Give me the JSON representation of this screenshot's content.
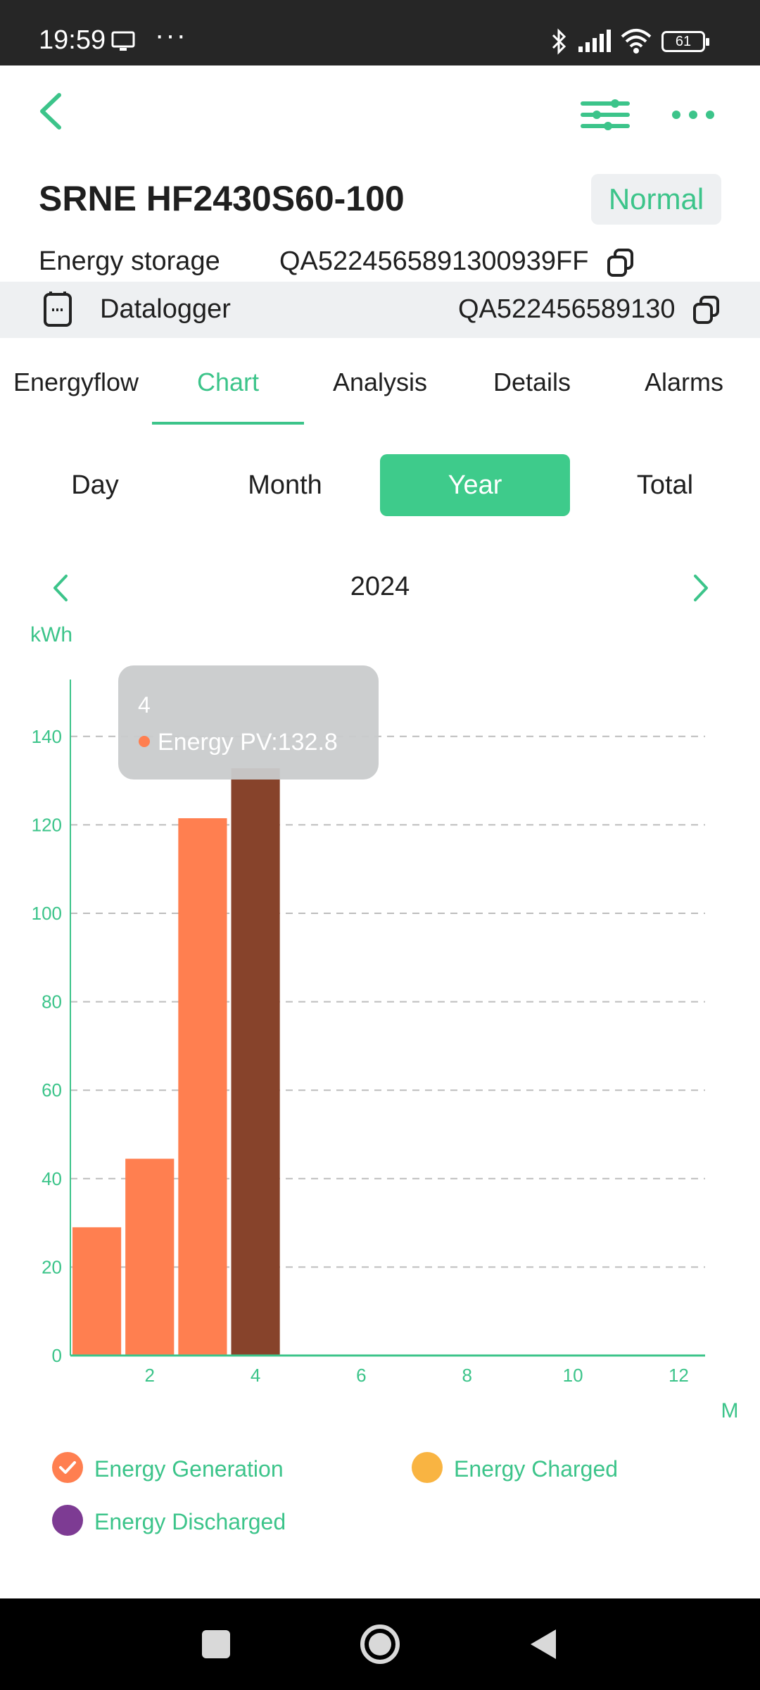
{
  "status_bar": {
    "time": "19:59",
    "overflow": "···",
    "battery": "61"
  },
  "device": {
    "title": "SRNE HF2430S60-100",
    "status": "Normal"
  },
  "energy_storage": {
    "label": "Energy storage",
    "serial": "QA5224565891300939FF"
  },
  "datalogger": {
    "label": "Datalogger",
    "serial": "QA522456589130"
  },
  "tabs": [
    {
      "label": "Energyflow"
    },
    {
      "label": "Chart"
    },
    {
      "label": "Analysis"
    },
    {
      "label": "Details"
    },
    {
      "label": "Alarms"
    }
  ],
  "active_tab": "Chart",
  "periods": [
    {
      "label": "Day"
    },
    {
      "label": "Month"
    },
    {
      "label": "Year"
    },
    {
      "label": "Total"
    }
  ],
  "active_period": "Year",
  "year": "2024",
  "colors": {
    "accent": "#3cc48a",
    "energy_generation": "#ff7f50",
    "energy_generation_selected": "#87432b",
    "energy_charged": "#f9b442",
    "energy_discharged": "#7d3b93"
  },
  "chart_data": {
    "type": "bar",
    "ylabel": "kWh",
    "xlabel": "M",
    "xlim": [
      0.5,
      12.5
    ],
    "ylim": [
      0,
      150
    ],
    "y_ticks": [
      0,
      20,
      40,
      60,
      80,
      100,
      120,
      140
    ],
    "x_ticks": [
      2,
      4,
      6,
      8,
      10,
      12
    ],
    "grid": true,
    "categories": [
      1,
      2,
      3,
      4
    ],
    "series": [
      {
        "name": "Energy Generation",
        "values": [
          29,
          44.5,
          121.5,
          132.8
        ],
        "color": "#ff7f50"
      }
    ],
    "highlighted_index": 3,
    "tooltip": {
      "title": "4",
      "series": "Energy PV",
      "value": "132.8",
      "text": "Energy PV:132.8"
    },
    "legend": [
      {
        "name": "Energy Generation",
        "color": "#ff7f50",
        "checked": true
      },
      {
        "name": "Energy Charged",
        "color": "#f9b442",
        "checked": false
      },
      {
        "name": "Energy Discharged",
        "color": "#7d3b93",
        "checked": false
      }
    ]
  }
}
